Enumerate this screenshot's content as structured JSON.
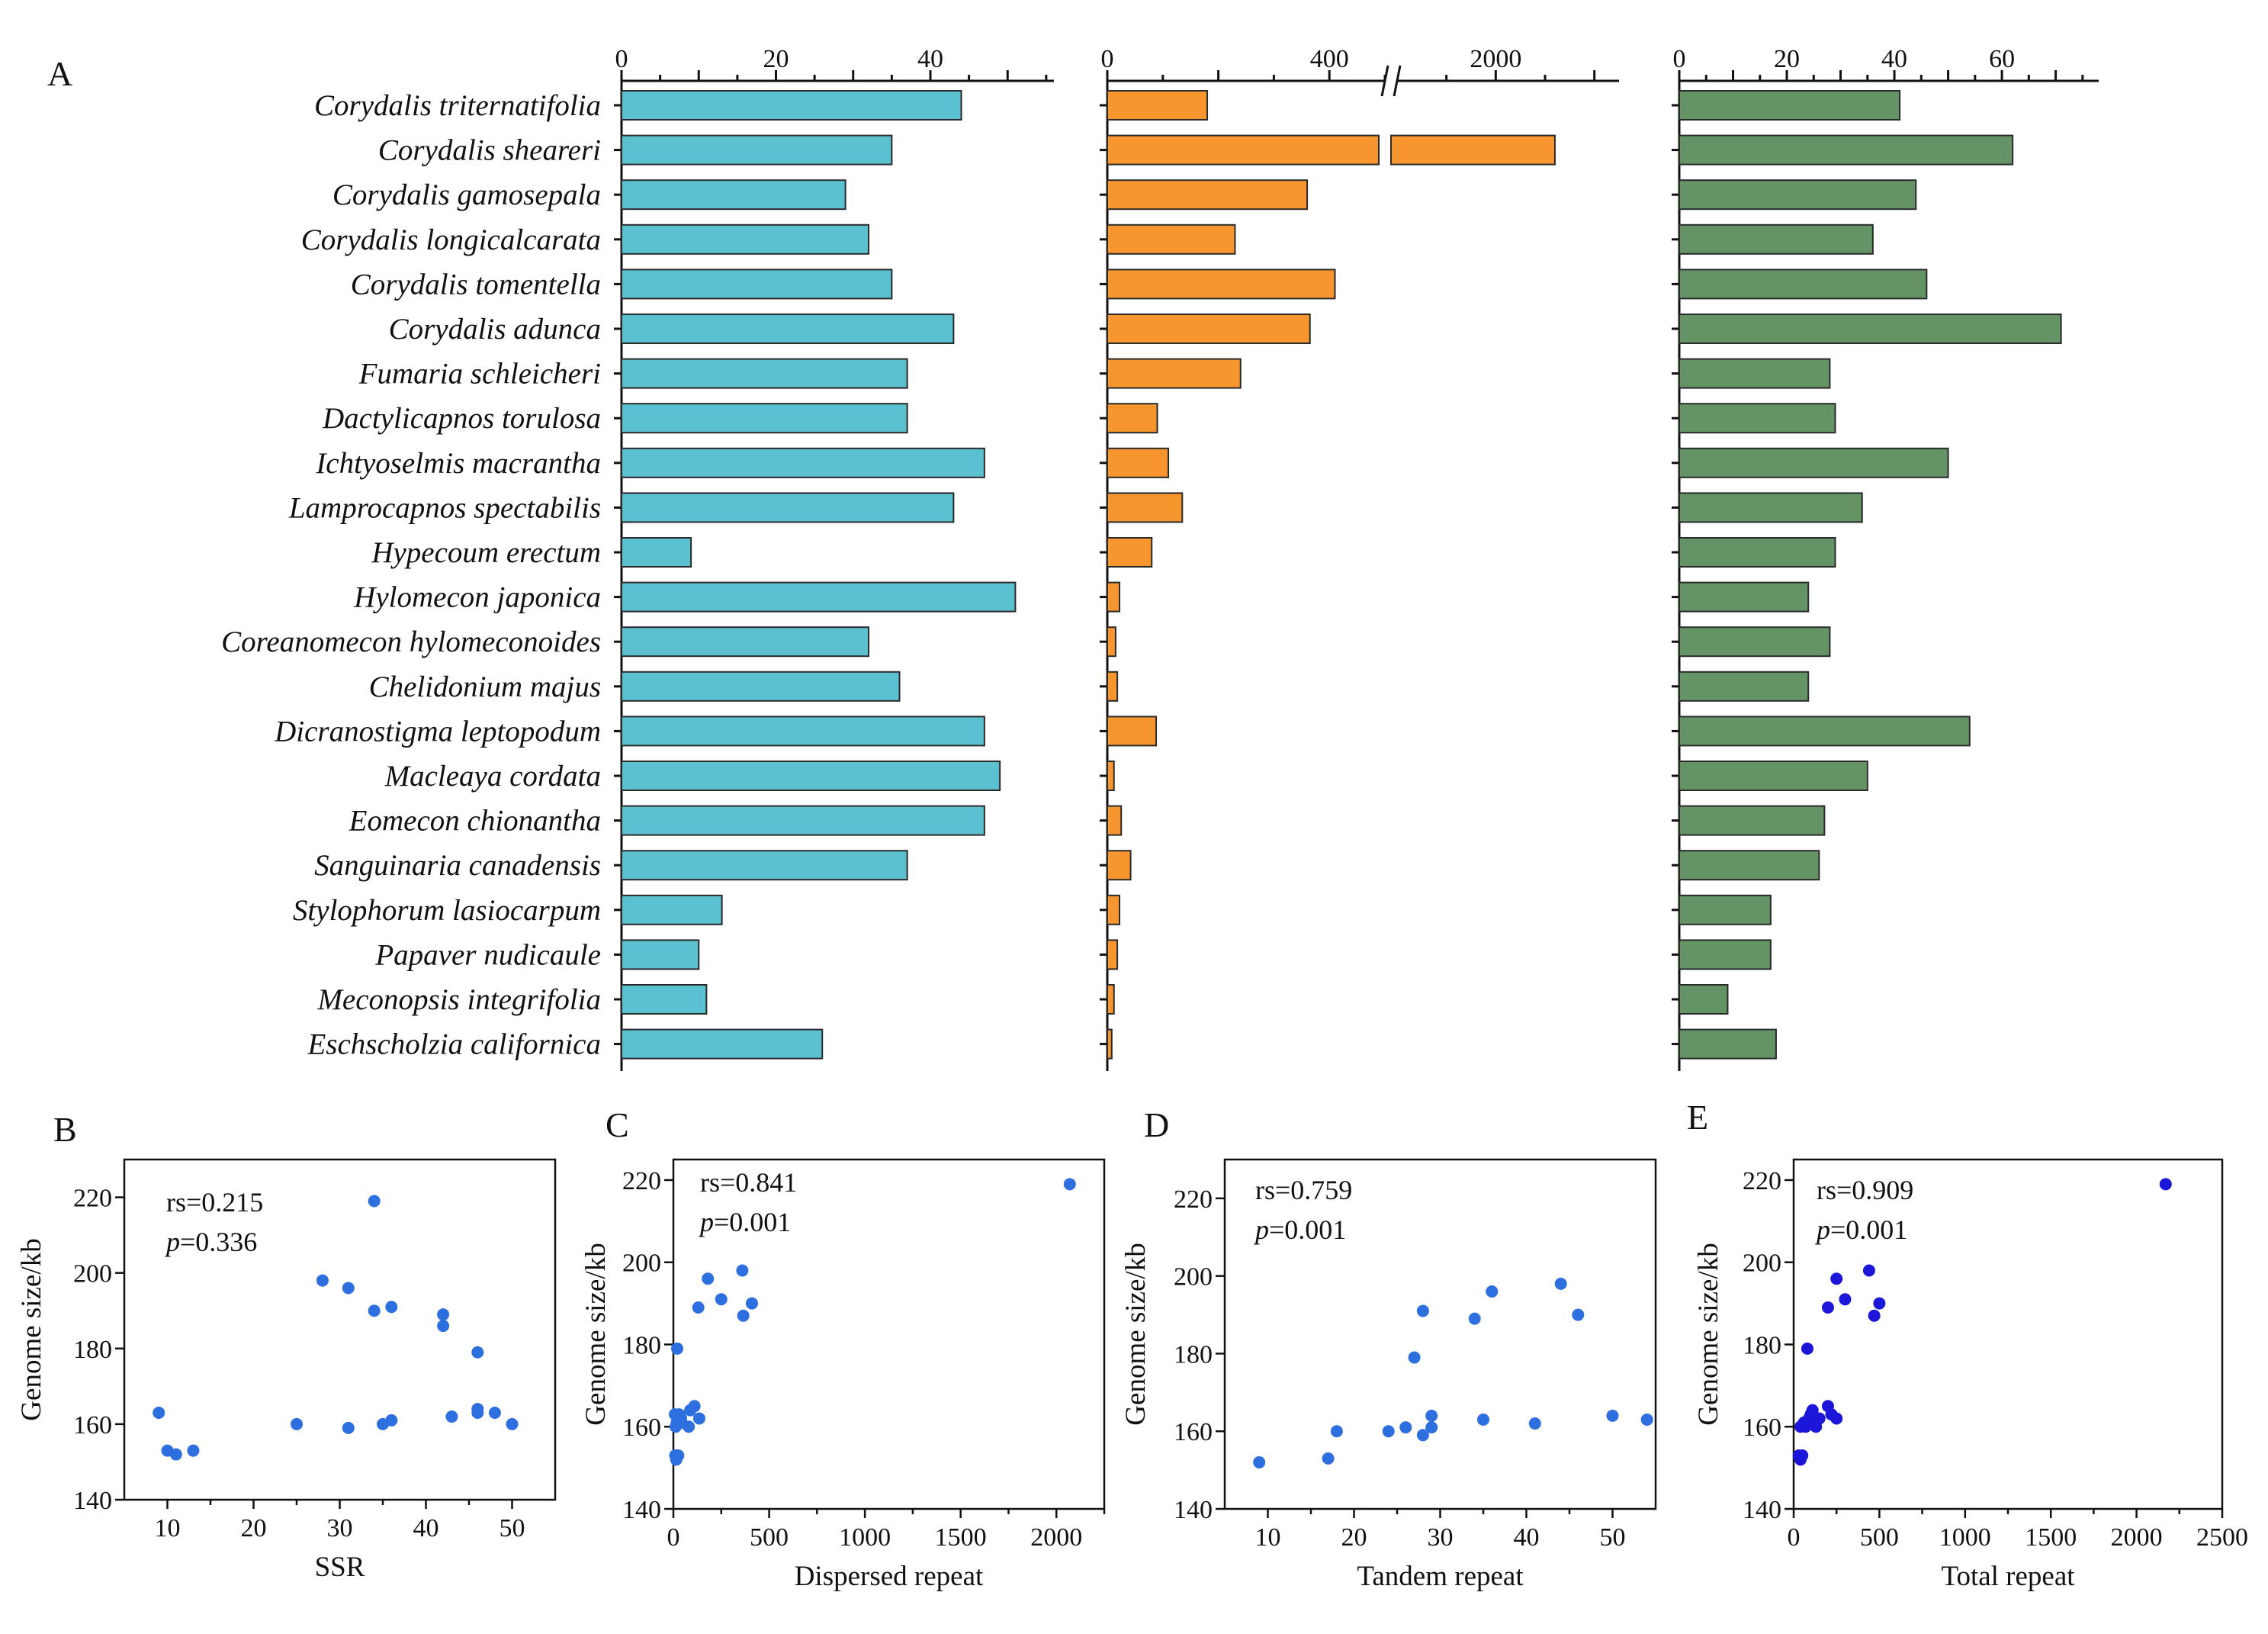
{
  "chart_data": [
    {
      "panel": "A",
      "type": "bar",
      "orientation": "horizontal",
      "categories": [
        "Corydalis triternatifolia",
        "Corydalis sheareri",
        "Corydalis gamosepala",
        "Corydalis longicalcarata",
        "Corydalis tomentella",
        "Corydalis adunca",
        "Fumaria schleicheri",
        "Dactylicapnos torulosa",
        "Ichtyoselmis macrantha",
        "Lamprocapnos spectabilis",
        "Hypecoum erectum",
        "Hylomecon japonica",
        "Coreanomecon hylomeconoides",
        "Chelidonium majus",
        "Dicranostigma leptopodum",
        "Macleaya cordata",
        "Eomecon chionantha",
        "Sanguinaria canadensis",
        "Stylophorum lasiocarpum",
        "Papaver nudicaule",
        "Meconopsis integrifolia",
        "Eschscholzia californica"
      ],
      "series": [
        {
          "name": "SSR",
          "color": "#5bc0d0",
          "xlim": [
            0,
            56
          ],
          "ticks": [
            "0",
            "20",
            "40"
          ],
          "tick_values": [
            0,
            20,
            40
          ],
          "values": [
            44,
            35,
            29,
            32,
            35,
            43,
            37,
            37,
            47,
            43,
            9,
            51,
            32,
            36,
            47,
            49,
            47,
            37,
            13,
            10,
            11,
            26
          ]
        },
        {
          "name": "Dispersed repeat",
          "color": "#f7952f",
          "axis_break": {
            "segment1": [
              0,
              500
            ],
            "segment2": [
              1800,
              2250
            ]
          },
          "ticks": [
            "0",
            "400",
            "2000"
          ],
          "tick_values": [
            0,
            400,
            2000
          ],
          "values": [
            180,
            2120,
            360,
            230,
            410,
            365,
            240,
            90,
            110,
            135,
            80,
            22,
            15,
            18,
            88,
            12,
            25,
            42,
            22,
            18,
            12,
            8
          ]
        },
        {
          "name": "Tandem repeat",
          "color": "#649366",
          "xlim": [
            0,
            78
          ],
          "ticks": [
            "0",
            "20",
            "40",
            "60"
          ],
          "tick_values": [
            0,
            20,
            40,
            60
          ],
          "values": [
            41,
            62,
            44,
            36,
            46,
            71,
            28,
            29,
            50,
            34,
            29,
            24,
            28,
            24,
            54,
            35,
            27,
            26,
            17,
            17,
            9,
            18
          ]
        }
      ]
    },
    {
      "panel": "B",
      "type": "scatter",
      "color": "#2e6fe0",
      "xlabel": "SSR",
      "ylabel": "Genome size/kb",
      "xlim": [
        5,
        55
      ],
      "ylim": [
        140,
        230
      ],
      "xticks": [
        10,
        20,
        30,
        40,
        50
      ],
      "yticks": [
        140,
        160,
        180,
        200,
        220
      ],
      "annotation": {
        "rs": "rs=0.215",
        "p_symbol": "p",
        "p_value": "=0.336"
      },
      "points": [
        [
          9,
          163
        ],
        [
          10,
          153
        ],
        [
          11,
          152
        ],
        [
          13,
          153
        ],
        [
          25,
          160
        ],
        [
          28,
          198
        ],
        [
          31,
          196
        ],
        [
          31,
          159
        ],
        [
          34,
          219
        ],
        [
          34,
          190
        ],
        [
          35,
          160
        ],
        [
          36,
          191
        ],
        [
          36,
          161
        ],
        [
          42,
          189
        ],
        [
          42,
          186
        ],
        [
          43,
          162
        ],
        [
          46,
          179
        ],
        [
          46,
          164
        ],
        [
          46,
          163
        ],
        [
          48,
          163
        ],
        [
          50,
          160
        ]
      ]
    },
    {
      "panel": "C",
      "type": "scatter",
      "color": "#2e6fe0",
      "xlabel": "Dispersed repeat",
      "ylabel": "Genome size/kb",
      "xlim": [
        0,
        2250
      ],
      "ylim": [
        140,
        225
      ],
      "xticks": [
        0,
        500,
        1000,
        1500,
        2000
      ],
      "yticks": [
        140,
        160,
        180,
        200,
        220
      ],
      "annotation": {
        "rs": "rs=0.841",
        "p_symbol": "p",
        "p_value": "=0.001"
      },
      "points": [
        [
          2070,
          219
        ],
        [
          360,
          198
        ],
        [
          180,
          196
        ],
        [
          410,
          190
        ],
        [
          250,
          191
        ],
        [
          365,
          187
        ],
        [
          130,
          189
        ],
        [
          20,
          179
        ],
        [
          10,
          153
        ],
        [
          15,
          152
        ],
        [
          25,
          153
        ],
        [
          18,
          161
        ],
        [
          12,
          160
        ],
        [
          22,
          162
        ],
        [
          30,
          163
        ],
        [
          40,
          162
        ],
        [
          88,
          164
        ],
        [
          110,
          165
        ],
        [
          135,
          162
        ],
        [
          80,
          160
        ],
        [
          8,
          163
        ],
        [
          42,
          161
        ]
      ]
    },
    {
      "panel": "D",
      "type": "scatter",
      "color": "#2e6fe0",
      "xlabel": "Tandem repeat",
      "ylabel": "Genome size/kb",
      "xlim": [
        5,
        55
      ],
      "ylim": [
        140,
        230
      ],
      "xticks": [
        10,
        20,
        30,
        40,
        50
      ],
      "yticks": [
        140,
        160,
        180,
        200,
        220
      ],
      "annotation": {
        "rs": "rs=0.759",
        "p_symbol": "p",
        "p_value": "=0.001"
      },
      "points": [
        [
          9,
          152
        ],
        [
          17,
          153
        ],
        [
          18,
          160
        ],
        [
          24,
          160
        ],
        [
          26,
          161
        ],
        [
          27,
          179
        ],
        [
          28,
          159
        ],
        [
          28,
          191
        ],
        [
          29,
          161
        ],
        [
          29,
          164
        ],
        [
          34,
          189
        ],
        [
          35,
          163
        ],
        [
          36,
          196
        ],
        [
          41,
          162
        ],
        [
          44,
          198
        ],
        [
          46,
          190
        ],
        [
          50,
          164
        ],
        [
          54,
          163
        ]
      ]
    },
    {
      "panel": "E",
      "type": "scatter",
      "color": "#1c16d8",
      "xlabel": "Total repeat",
      "ylabel": "Genome size/kb",
      "xlim": [
        0,
        2500
      ],
      "ylim": [
        140,
        225
      ],
      "xticks": [
        0,
        500,
        1000,
        1500,
        2000,
        2500
      ],
      "yticks": [
        140,
        160,
        180,
        200,
        220
      ],
      "annotation": {
        "rs": "rs=0.909",
        "p_symbol": "p",
        "p_value": "=0.001"
      },
      "points": [
        [
          2170,
          219
        ],
        [
          440,
          198
        ],
        [
          250,
          196
        ],
        [
          500,
          190
        ],
        [
          300,
          191
        ],
        [
          470,
          187
        ],
        [
          200,
          189
        ],
        [
          80,
          179
        ],
        [
          30,
          153
        ],
        [
          40,
          152
        ],
        [
          50,
          153
        ],
        [
          60,
          161
        ],
        [
          70,
          160
        ],
        [
          90,
          162
        ],
        [
          100,
          163
        ],
        [
          110,
          164
        ],
        [
          130,
          160
        ],
        [
          150,
          162
        ],
        [
          200,
          165
        ],
        [
          220,
          163
        ],
        [
          250,
          162
        ],
        [
          40,
          160
        ]
      ]
    }
  ]
}
